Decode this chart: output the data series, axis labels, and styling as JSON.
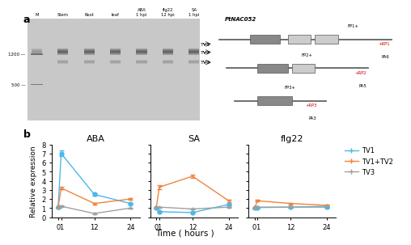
{
  "panel_b": {
    "time_points": [
      0,
      1,
      12,
      24
    ],
    "treatments": [
      "ABA",
      "SA",
      "flg22"
    ],
    "series": {
      "TV1": {
        "color": "#4db8e8",
        "ABA": {
          "mean": [
            1.1,
            7.0,
            2.5,
            1.5
          ],
          "err": [
            0.05,
            0.3,
            0.15,
            0.1
          ]
        },
        "SA": {
          "mean": [
            1.0,
            0.6,
            0.5,
            1.4
          ],
          "err": [
            0.05,
            0.1,
            0.05,
            0.1
          ]
        },
        "flg22": {
          "mean": [
            1.0,
            1.05,
            1.1,
            1.1
          ],
          "err": [
            0.05,
            0.05,
            0.05,
            0.05
          ]
        }
      },
      "TV1+TV2": {
        "color": "#f0843c",
        "ABA": {
          "mean": [
            1.1,
            3.2,
            1.5,
            2.0
          ],
          "err": [
            0.05,
            0.15,
            0.1,
            0.1
          ]
        },
        "SA": {
          "mean": [
            1.1,
            3.3,
            4.5,
            1.8
          ],
          "err": [
            0.05,
            0.2,
            0.2,
            0.15
          ]
        },
        "flg22": {
          "mean": [
            1.0,
            1.8,
            1.5,
            1.3
          ],
          "err": [
            0.05,
            0.1,
            0.1,
            0.1
          ]
        }
      },
      "TV3": {
        "color": "#a0a0a0",
        "ABA": {
          "mean": [
            1.0,
            1.2,
            0.4,
            1.0
          ],
          "err": [
            0.05,
            0.1,
            0.05,
            0.05
          ]
        },
        "SA": {
          "mean": [
            1.0,
            1.1,
            0.9,
            1.1
          ],
          "err": [
            0.05,
            0.05,
            0.05,
            0.05
          ]
        },
        "flg22": {
          "mean": [
            1.0,
            1.1,
            1.1,
            1.2
          ],
          "err": [
            0.05,
            0.05,
            0.05,
            0.05
          ]
        }
      }
    },
    "ylabel": "Relative expression",
    "xlabel": "Time ( hours )",
    "ylim": [
      0,
      8
    ],
    "yticks": [
      0,
      1,
      2,
      3,
      4,
      5,
      6,
      7,
      8
    ]
  },
  "panel_a": {
    "gel_bg": "#d8d8d8",
    "lane_labels": [
      "M",
      "Stem",
      "Root",
      "leaf",
      "ABA\n1 hpi",
      "flg22\n12 hpi",
      "SA\n1 hpi"
    ],
    "band_positions": {
      "1200": 0.42,
      "500": 0.72
    },
    "tv_labels": [
      "TV1",
      "TV2",
      "TV3"
    ],
    "gene_name": "PtNAC052"
  }
}
